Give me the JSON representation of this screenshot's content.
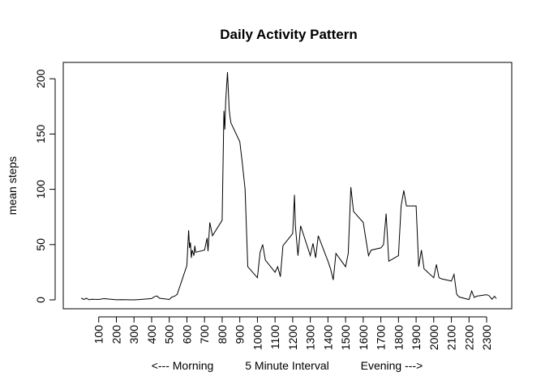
{
  "chart_data": {
    "type": "line",
    "title": "Daily Activity Pattern",
    "xlabel": "<--- Morning          5 Minute Interval          Evening --->",
    "ylabel": "mean steps",
    "xlim": [
      0,
      2355
    ],
    "ylim": [
      0,
      206
    ],
    "xticks": [
      100,
      200,
      300,
      400,
      500,
      600,
      700,
      800,
      900,
      1000,
      1100,
      1200,
      1300,
      1400,
      1500,
      1600,
      1700,
      1800,
      1900,
      2000,
      2100,
      2200,
      2300
    ],
    "yticks": [
      0,
      50,
      100,
      150,
      200
    ],
    "grid": false,
    "color": "#000000",
    "series": [
      {
        "x": [
          0,
          15,
          30,
          45,
          60,
          100,
          130,
          200,
          230,
          300,
          330,
          400,
          415,
          430,
          445,
          500,
          515,
          530,
          545,
          600,
          610,
          615,
          620,
          625,
          630,
          640,
          645,
          650,
          700,
          715,
          720,
          730,
          745,
          800,
          810,
          815,
          820,
          830,
          835,
          840,
          845,
          850,
          900,
          915,
          930,
          945,
          1000,
          1015,
          1030,
          1045,
          1100,
          1115,
          1130,
          1145,
          1200,
          1210,
          1215,
          1230,
          1245,
          1300,
          1315,
          1330,
          1345,
          1400,
          1415,
          1430,
          1445,
          1500,
          1515,
          1530,
          1545,
          1600,
          1615,
          1630,
          1645,
          1700,
          1715,
          1730,
          1745,
          1800,
          1815,
          1830,
          1845,
          1900,
          1915,
          1930,
          1945,
          2000,
          2015,
          2030,
          2045,
          2100,
          2115,
          2130,
          2145,
          2200,
          2215,
          2230,
          2245,
          2300,
          2315,
          2330,
          2345,
          2355
        ],
        "y": [
          1.7,
          0.3,
          1.5,
          0.1,
          0.5,
          0.4,
          1.1,
          0.1,
          0.2,
          0.0,
          0.3,
          1.2,
          2.8,
          3.5,
          1.5,
          0.4,
          2.6,
          3.2,
          5.0,
          31.0,
          63.0,
          47.0,
          52.0,
          38.0,
          45.0,
          40.0,
          49.0,
          43.0,
          45.0,
          56.0,
          44.0,
          70.0,
          58.0,
          72.0,
          171.0,
          154.0,
          180.0,
          206.0,
          190.0,
          172.0,
          165.0,
          160.0,
          143.0,
          123.0,
          100.0,
          30.0,
          20.0,
          43.0,
          50.0,
          36.0,
          25.0,
          30.0,
          21.0,
          49.0,
          60.0,
          95.0,
          67.0,
          40.0,
          67.0,
          40.0,
          51.0,
          38.0,
          58.0,
          35.0,
          28.0,
          18.0,
          42.0,
          30.0,
          42.0,
          102.0,
          80.0,
          70.0,
          55.0,
          40.0,
          45.0,
          47.0,
          50.0,
          78.0,
          35.0,
          40.0,
          85.0,
          99.0,
          85.0,
          85.0,
          30.0,
          45.0,
          28.0,
          20.0,
          32.0,
          20.0,
          19.0,
          17.0,
          23.0,
          5.0,
          2.6,
          0.3,
          8.0,
          2.1,
          3.4,
          4.7,
          3.6,
          0.6,
          3.3,
          1.1
        ]
      }
    ]
  }
}
